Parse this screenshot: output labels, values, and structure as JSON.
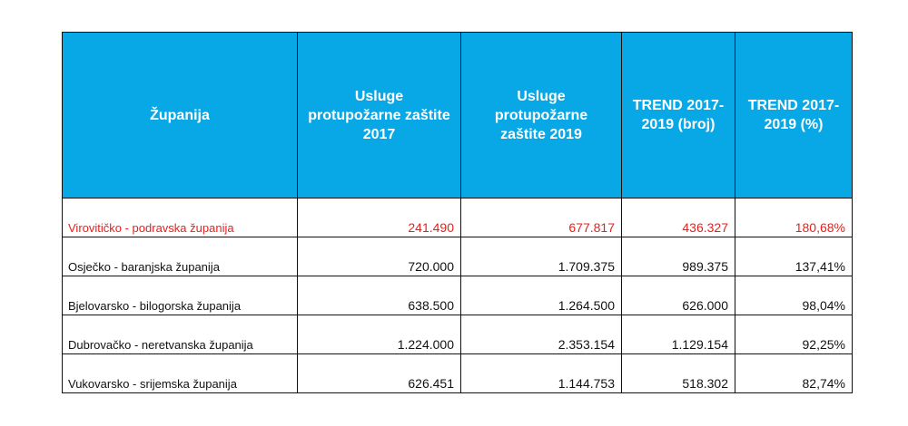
{
  "table": {
    "headers": [
      "Županija",
      "Usluge protupožarne zaštite 2017",
      "Usluge protupožarne zaštite 2019",
      "TREND 2017-2019 (broj)",
      "TREND 2017-2019 (%)"
    ],
    "rows": [
      [
        "Virovitičko - podravska županija",
        "241.490",
        "677.817",
        "436.327",
        "180,68%"
      ],
      [
        "Osječko - baranjska županija",
        "720.000",
        "1.709.375",
        "989.375",
        "137,41%"
      ],
      [
        "Bjelovarsko - bilogorska županija",
        "638.500",
        "1.264.500",
        "626.000",
        "98,04%"
      ],
      [
        "Dubrovačko - neretvanska županija",
        "1.224.000",
        "2.353.154",
        "1.129.154",
        "92,25%"
      ],
      [
        "Vukovarsko - srijemska županija",
        "626.451",
        "1.144.753",
        "518.302",
        "82,74%"
      ]
    ],
    "highlight_color": "#e8201c",
    "header_color": "#08a8e6"
  }
}
